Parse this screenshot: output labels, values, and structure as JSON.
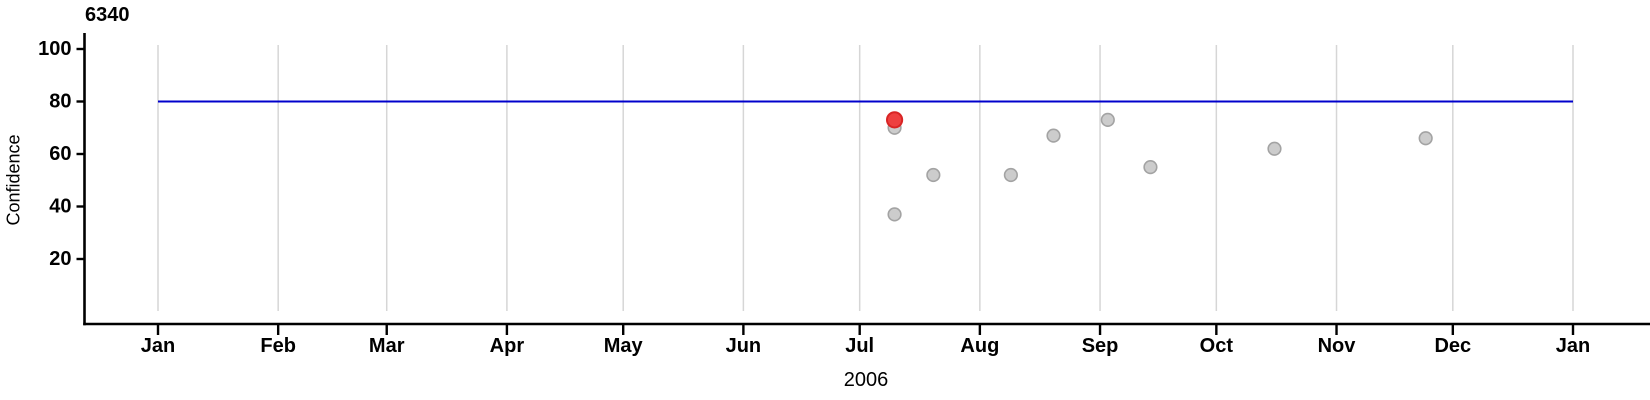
{
  "title": "6340",
  "chart_data": {
    "type": "scatter",
    "title": "6340",
    "xlabel": "2006",
    "ylabel": "Confidence",
    "x_axis": {
      "year_label": "2006",
      "tick_labels": [
        "Jan",
        "Feb",
        "Mar",
        "Apr",
        "May",
        "Jun",
        "Jul",
        "Aug",
        "Sep",
        "Oct",
        "Nov",
        "Dec",
        "Jan"
      ],
      "tick_days": [
        0,
        31,
        59,
        90,
        120,
        151,
        181,
        212,
        243,
        273,
        304,
        334,
        365
      ],
      "range_days": [
        0,
        365
      ],
      "grid": "vertical line at each month start"
    },
    "y_axis": {
      "label": "Confidence",
      "tick_labels": [
        "20",
        "40",
        "60",
        "80",
        "100"
      ],
      "tick_values": [
        20,
        40,
        60,
        80,
        100
      ],
      "range": [
        -5,
        106
      ]
    },
    "reference_line": {
      "orientation": "horizontal",
      "value": 80,
      "span_days": [
        0,
        365
      ],
      "color": "#0000cc"
    },
    "legend": "none",
    "series": [
      {
        "name": "confidence-observations",
        "marker": "circle",
        "fill": "#cccccc",
        "stroke": "#a3a3a3",
        "points": [
          {
            "date": "Jul 10",
            "day": 190,
            "confidence": 70
          },
          {
            "date": "Jul 10",
            "day": 190,
            "confidence": 37
          },
          {
            "date": "Jul 20",
            "day": 200,
            "confidence": 52
          },
          {
            "date": "Aug 9",
            "day": 220,
            "confidence": 52
          },
          {
            "date": "Aug 19",
            "day": 231,
            "confidence": 67
          },
          {
            "date": "Sep 3",
            "day": 245,
            "confidence": 73
          },
          {
            "date": "Sep 14",
            "day": 256,
            "confidence": 55
          },
          {
            "date": "Oct 15",
            "day": 288,
            "confidence": 62
          },
          {
            "date": "Nov 24",
            "day": 327,
            "confidence": 66
          }
        ]
      },
      {
        "name": "highlighted-observation",
        "marker": "circle",
        "fill": "#ee4040",
        "stroke": "#d92525",
        "points": [
          {
            "date": "Jul 10",
            "day": 190,
            "confidence": 73
          }
        ]
      }
    ],
    "colors": {
      "grid": "#d6d6d6",
      "axis": "#000000",
      "text": "#000000",
      "reference_line": "#0000cc",
      "point_fill": "#cccccc",
      "point_stroke": "#a3a3a3",
      "highlight_fill": "#ee4040",
      "highlight_stroke": "#d92525"
    }
  }
}
